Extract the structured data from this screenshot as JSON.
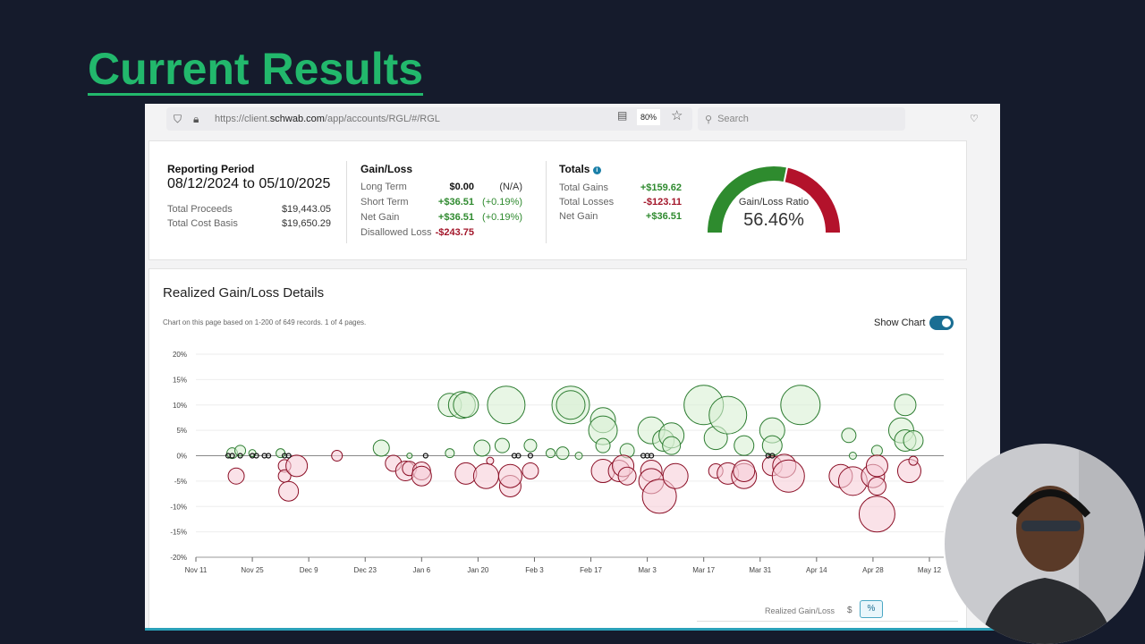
{
  "slide": {
    "title": "Current Results"
  },
  "browser": {
    "url_prefix": "https://client.",
    "url_domain": "schwab.com",
    "url_path": "/app/accounts/RGL/#/RGL",
    "zoom": "80%",
    "search_placeholder": "Search"
  },
  "summary": {
    "reporting_period": {
      "label": "Reporting Period",
      "value": "08/12/2024 to 05/10/2025",
      "total_proceeds_label": "Total Proceeds",
      "total_proceeds": "$19,443.05",
      "total_cost_basis_label": "Total Cost Basis",
      "total_cost_basis": "$19,650.29"
    },
    "gain_loss": {
      "label": "Gain/Loss",
      "rows": [
        {
          "label": "Long Term",
          "value": "$0.00",
          "pct": "(N/A)"
        },
        {
          "label": "Short Term",
          "value": "+$36.51",
          "pct": "(+0.19%)"
        },
        {
          "label": "Net Gain",
          "value": "+$36.51",
          "pct": "(+0.19%)"
        },
        {
          "label": "Disallowed Loss",
          "value": "-$243.75",
          "pct": ""
        }
      ]
    },
    "totals": {
      "label": "Totals",
      "rows": [
        {
          "label": "Total Gains",
          "value": "+$159.62"
        },
        {
          "label": "Total Losses",
          "value": "-$123.11"
        },
        {
          "label": "Net Gain",
          "value": "+$36.51"
        }
      ]
    },
    "gauge": {
      "label": "Gain/Loss Ratio",
      "value": "56.46%",
      "fraction": 0.5646,
      "gain_color": "#2e8b2e",
      "loss_color": "#b3122b"
    }
  },
  "details": {
    "title": "Realized Gain/Loss Details",
    "note": "Chart on this page based on 1-200 of 649 records. 1 of 4 pages.",
    "show_chart_label": "Show Chart",
    "show_chart": true,
    "footer_label": "Realized Gain/Loss",
    "dollar_button": "$",
    "percent_button": "%"
  },
  "chart_data": {
    "type": "scatter",
    "subtype": "bubble",
    "ylim": [
      -20,
      20
    ],
    "yticks": [
      "20%",
      "15%",
      "10%",
      "5%",
      "0%",
      "-5%",
      "-10%",
      "-15%",
      "-20%"
    ],
    "ytick_values": [
      20,
      15,
      10,
      5,
      0,
      -5,
      -10,
      -15,
      -20
    ],
    "xlim": [
      "2024-11-11",
      "2025-05-14"
    ],
    "xticks": [
      "Nov 11",
      "Nov 25",
      "Dec 9",
      "Dec 23",
      "Jan 6",
      "Jan 20",
      "Feb 3",
      "Feb 17",
      "Mar 3",
      "Mar 17",
      "Mar 31",
      "Apr 14",
      "Apr 28",
      "May 12"
    ],
    "xtick_dates": [
      "2024-11-11",
      "2024-11-25",
      "2024-12-09",
      "2024-12-23",
      "2025-01-06",
      "2025-01-20",
      "2025-02-03",
      "2025-02-17",
      "2025-03-03",
      "2025-03-17",
      "2025-03-31",
      "2025-04-14",
      "2025-04-28",
      "2025-05-12"
    ],
    "grid": true,
    "colors": {
      "gain": "#2e7d32",
      "gain_fill": "#d8f0d4",
      "loss": "#8b0f26",
      "loss_fill": "#f7cfd8",
      "neutral": "#111111"
    },
    "gains": [
      [
        "2024-11-20",
        0.5,
        6
      ],
      [
        "2024-11-22",
        1,
        6
      ],
      [
        "2024-11-25",
        0.5,
        4
      ],
      [
        "2024-12-02",
        0.5,
        5
      ],
      [
        "2024-12-27",
        1.5,
        9
      ],
      [
        "2025-01-03",
        0,
        3
      ],
      [
        "2025-01-13",
        10,
        13
      ],
      [
        "2025-01-13",
        0.5,
        5
      ],
      [
        "2025-01-16",
        10,
        15
      ],
      [
        "2025-01-17",
        10,
        14
      ],
      [
        "2025-01-21",
        1.5,
        9
      ],
      [
        "2025-01-26",
        2,
        8
      ],
      [
        "2025-01-27",
        10,
        21
      ],
      [
        "2025-02-02",
        2,
        7
      ],
      [
        "2025-02-07",
        0.5,
        5
      ],
      [
        "2025-02-10",
        0.5,
        7
      ],
      [
        "2025-02-12",
        10,
        21
      ],
      [
        "2025-02-12",
        10,
        16
      ],
      [
        "2025-02-14",
        0,
        4
      ],
      [
        "2025-02-20",
        7,
        14
      ],
      [
        "2025-02-20",
        5,
        16
      ],
      [
        "2025-02-20",
        2,
        8
      ],
      [
        "2025-02-26",
        1,
        8
      ],
      [
        "2025-03-04",
        5,
        15
      ],
      [
        "2025-03-07",
        3,
        12
      ],
      [
        "2025-03-09",
        4,
        14
      ],
      [
        "2025-03-09",
        2,
        10
      ],
      [
        "2025-03-17",
        10,
        22
      ],
      [
        "2025-03-20",
        3.5,
        13
      ],
      [
        "2025-03-23",
        8,
        21
      ],
      [
        "2025-03-27",
        2,
        11
      ],
      [
        "2025-04-03",
        5,
        14
      ],
      [
        "2025-04-03",
        2,
        11
      ],
      [
        "2025-04-10",
        10,
        22
      ],
      [
        "2025-04-22",
        4,
        8
      ],
      [
        "2025-04-23",
        0,
        4
      ],
      [
        "2025-04-29",
        1,
        6
      ],
      [
        "2025-05-05",
        5,
        14
      ],
      [
        "2025-05-06",
        10,
        12
      ],
      [
        "2025-05-06",
        3,
        12
      ],
      [
        "2025-05-08",
        3,
        11
      ]
    ],
    "losses": [
      [
        "2024-11-21",
        -4,
        9
      ],
      [
        "2024-12-03",
        -2,
        7
      ],
      [
        "2024-12-03",
        -4,
        7
      ],
      [
        "2024-12-04",
        -7,
        11
      ],
      [
        "2024-12-06",
        -2,
        12
      ],
      [
        "2024-12-16",
        0,
        6
      ],
      [
        "2024-12-30",
        -1.5,
        9
      ],
      [
        "2025-01-02",
        -3,
        11
      ],
      [
        "2025-01-03",
        -2.5,
        8
      ],
      [
        "2025-01-06",
        -3,
        10
      ],
      [
        "2025-01-06",
        -4,
        11
      ],
      [
        "2025-01-17",
        -3.5,
        12
      ],
      [
        "2025-01-22",
        -4,
        14
      ],
      [
        "2025-01-23",
        -1,
        4
      ],
      [
        "2025-01-28",
        -6,
        12
      ],
      [
        "2025-01-28",
        -4,
        13
      ],
      [
        "2025-02-02",
        -3,
        9
      ],
      [
        "2025-02-20",
        -3,
        13
      ],
      [
        "2025-02-24",
        -3,
        12
      ],
      [
        "2025-02-25",
        -2,
        12
      ],
      [
        "2025-02-26",
        -4,
        10
      ],
      [
        "2025-03-04",
        -3,
        12
      ],
      [
        "2025-03-04",
        -5,
        14
      ],
      [
        "2025-03-06",
        -8,
        19
      ],
      [
        "2025-03-10",
        -4,
        14
      ],
      [
        "2025-03-20",
        -3,
        8
      ],
      [
        "2025-03-23",
        -3.5,
        12
      ],
      [
        "2025-03-27",
        -4,
        14
      ],
      [
        "2025-03-27",
        -3,
        12
      ],
      [
        "2025-04-03",
        -2,
        11
      ],
      [
        "2025-04-06",
        -2,
        13
      ],
      [
        "2025-04-07",
        -4,
        18
      ],
      [
        "2025-04-20",
        -4,
        13
      ],
      [
        "2025-04-23",
        -5,
        16
      ],
      [
        "2025-04-28",
        -4,
        13
      ],
      [
        "2025-04-29",
        -2,
        12
      ],
      [
        "2025-04-29",
        -6,
        10
      ],
      [
        "2025-04-29",
        -11.5,
        20
      ],
      [
        "2025-05-07",
        -3,
        13
      ],
      [
        "2025-05-08",
        -1,
        5
      ]
    ],
    "neutral": [
      "2024-11-19",
      "2024-11-20",
      "2024-11-22",
      "2024-11-25",
      "2024-11-26",
      "2024-11-28",
      "2024-11-29",
      "2024-12-03",
      "2024-12-04",
      "2025-01-07",
      "2025-01-29",
      "2025-01-30",
      "2025-02-02",
      "2025-03-02",
      "2025-03-03",
      "2025-03-04",
      "2025-04-02",
      "2025-04-03"
    ]
  }
}
